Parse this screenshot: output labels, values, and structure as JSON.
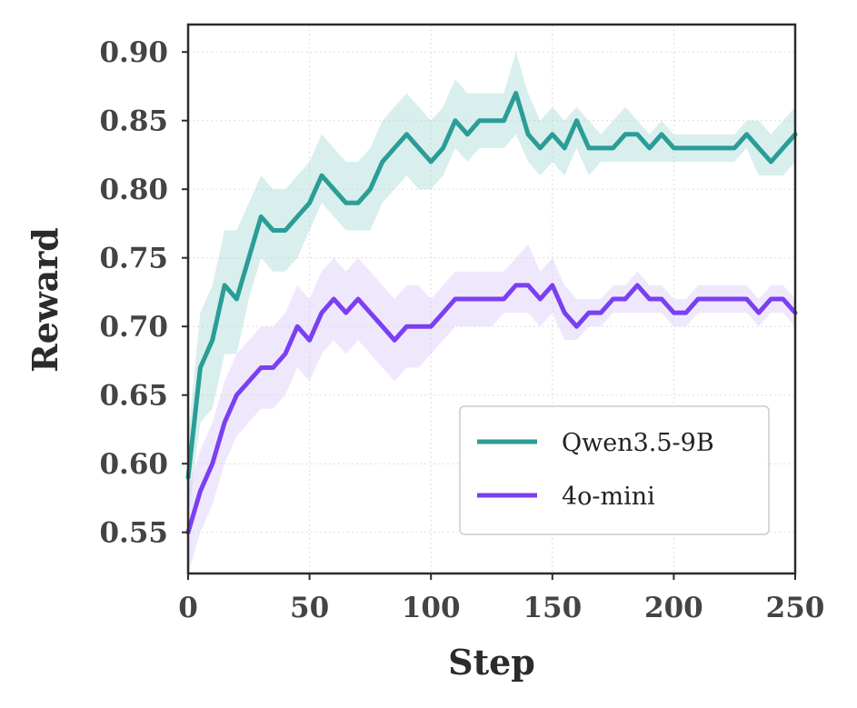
{
  "chart_data": {
    "type": "line",
    "title": "",
    "xlabel": "Step",
    "ylabel": "Reward",
    "xlim": [
      0,
      250
    ],
    "ylim": [
      0.52,
      0.92
    ],
    "xticks": [
      0,
      50,
      100,
      150,
      200,
      250
    ],
    "xtick_labels": [
      "0",
      "50",
      "100",
      "150",
      "200",
      "250"
    ],
    "yticks": [
      0.55,
      0.6,
      0.65,
      0.7,
      0.75,
      0.8,
      0.85,
      0.9
    ],
    "ytick_labels": [
      "0.55",
      "0.60",
      "0.65",
      "0.70",
      "0.75",
      "0.80",
      "0.85",
      "0.90"
    ],
    "grid": true,
    "legend_position": "lower-right",
    "x": [
      0,
      5,
      10,
      15,
      20,
      25,
      30,
      35,
      40,
      45,
      50,
      55,
      60,
      65,
      70,
      75,
      80,
      85,
      90,
      95,
      100,
      105,
      110,
      115,
      120,
      125,
      130,
      135,
      140,
      145,
      150,
      155,
      160,
      165,
      170,
      175,
      180,
      185,
      190,
      195,
      200,
      205,
      210,
      215,
      220,
      225,
      230,
      235,
      240,
      245,
      250
    ],
    "series": [
      {
        "name": "Qwen3.5-9B",
        "color": "#2a9d96",
        "band_color": "#a8dcd6",
        "values": [
          0.59,
          0.67,
          0.69,
          0.73,
          0.72,
          0.75,
          0.78,
          0.77,
          0.77,
          0.78,
          0.79,
          0.81,
          0.8,
          0.79,
          0.79,
          0.8,
          0.82,
          0.83,
          0.84,
          0.83,
          0.82,
          0.83,
          0.85,
          0.84,
          0.85,
          0.85,
          0.85,
          0.87,
          0.84,
          0.83,
          0.84,
          0.83,
          0.85,
          0.83,
          0.83,
          0.83,
          0.84,
          0.84,
          0.83,
          0.84,
          0.83,
          0.83,
          0.83,
          0.83,
          0.83,
          0.83,
          0.84,
          0.83,
          0.82,
          0.83,
          0.84
        ],
        "lower": [
          0.56,
          0.63,
          0.64,
          0.68,
          0.68,
          0.72,
          0.75,
          0.74,
          0.74,
          0.75,
          0.77,
          0.79,
          0.78,
          0.77,
          0.77,
          0.77,
          0.79,
          0.8,
          0.81,
          0.8,
          0.8,
          0.81,
          0.83,
          0.82,
          0.83,
          0.83,
          0.83,
          0.84,
          0.82,
          0.81,
          0.82,
          0.81,
          0.83,
          0.81,
          0.82,
          0.82,
          0.82,
          0.82,
          0.82,
          0.82,
          0.82,
          0.82,
          0.82,
          0.82,
          0.82,
          0.82,
          0.83,
          0.81,
          0.81,
          0.81,
          0.82
        ],
        "upper": [
          0.62,
          0.71,
          0.73,
          0.77,
          0.77,
          0.79,
          0.81,
          0.8,
          0.8,
          0.81,
          0.82,
          0.84,
          0.83,
          0.82,
          0.82,
          0.83,
          0.85,
          0.86,
          0.87,
          0.86,
          0.85,
          0.86,
          0.88,
          0.87,
          0.87,
          0.87,
          0.87,
          0.9,
          0.87,
          0.85,
          0.86,
          0.85,
          0.86,
          0.85,
          0.84,
          0.85,
          0.86,
          0.85,
          0.84,
          0.85,
          0.84,
          0.84,
          0.84,
          0.84,
          0.84,
          0.84,
          0.85,
          0.85,
          0.84,
          0.85,
          0.86
        ]
      },
      {
        "name": "4o-mini",
        "color": "#7b3ff2",
        "band_color": "#dccbfa",
        "values": [
          0.55,
          0.58,
          0.6,
          0.63,
          0.65,
          0.66,
          0.67,
          0.67,
          0.68,
          0.7,
          0.69,
          0.71,
          0.72,
          0.71,
          0.72,
          0.71,
          0.7,
          0.69,
          0.7,
          0.7,
          0.7,
          0.71,
          0.72,
          0.72,
          0.72,
          0.72,
          0.72,
          0.73,
          0.73,
          0.72,
          0.73,
          0.71,
          0.7,
          0.71,
          0.71,
          0.72,
          0.72,
          0.73,
          0.72,
          0.72,
          0.71,
          0.71,
          0.72,
          0.72,
          0.72,
          0.72,
          0.72,
          0.71,
          0.72,
          0.72,
          0.71
        ],
        "lower": [
          0.52,
          0.55,
          0.57,
          0.6,
          0.62,
          0.63,
          0.64,
          0.64,
          0.65,
          0.67,
          0.66,
          0.68,
          0.69,
          0.68,
          0.69,
          0.68,
          0.67,
          0.66,
          0.67,
          0.67,
          0.68,
          0.69,
          0.7,
          0.7,
          0.7,
          0.7,
          0.71,
          0.71,
          0.71,
          0.7,
          0.71,
          0.69,
          0.69,
          0.7,
          0.7,
          0.71,
          0.71,
          0.71,
          0.71,
          0.71,
          0.7,
          0.7,
          0.71,
          0.71,
          0.71,
          0.71,
          0.71,
          0.7,
          0.71,
          0.71,
          0.7
        ],
        "upper": [
          0.58,
          0.61,
          0.63,
          0.66,
          0.68,
          0.69,
          0.7,
          0.7,
          0.71,
          0.73,
          0.72,
          0.74,
          0.75,
          0.74,
          0.75,
          0.74,
          0.73,
          0.72,
          0.73,
          0.73,
          0.72,
          0.73,
          0.74,
          0.74,
          0.74,
          0.74,
          0.74,
          0.75,
          0.76,
          0.74,
          0.75,
          0.73,
          0.72,
          0.72,
          0.72,
          0.73,
          0.73,
          0.74,
          0.73,
          0.73,
          0.72,
          0.72,
          0.73,
          0.73,
          0.73,
          0.73,
          0.73,
          0.72,
          0.73,
          0.73,
          0.72
        ]
      }
    ]
  }
}
